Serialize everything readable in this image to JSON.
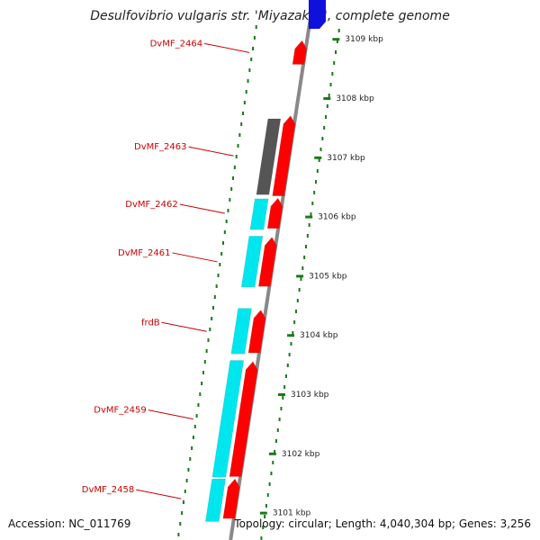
{
  "title": "Desulfovibrio vulgaris str. 'Miyazaki F', complete genome",
  "footer": {
    "accession": "Accession: NC_011769",
    "topology": "Topology: circular; Length: 4,040,304 bp; Genes: 3,256"
  },
  "colors": {
    "forward_gene": "#ff0000",
    "reverse_gene": "#00e6ee",
    "other_feature": "#555555",
    "top_feature": "#1010dd",
    "label": "#cc0000",
    "backbone": "#888888",
    "tick": "#1a7a1a"
  },
  "scale": {
    "unit": "kbp",
    "ticks": [
      {
        "kbp": 3109,
        "label": "3109 kbp"
      },
      {
        "kbp": 3108,
        "label": "3108 kbp"
      },
      {
        "kbp": 3107,
        "label": "3107 kbp"
      },
      {
        "kbp": 3106,
        "label": "3106 kbp"
      },
      {
        "kbp": 3105,
        "label": "3105 kbp"
      },
      {
        "kbp": 3104,
        "label": "3104 kbp"
      },
      {
        "kbp": 3103,
        "label": "3103 kbp"
      },
      {
        "kbp": 3102,
        "label": "3102 kbp"
      },
      {
        "kbp": 3101,
        "label": "3101 kbp"
      }
    ]
  },
  "genes": [
    {
      "label": "DvMF_2464",
      "strand": "forward",
      "start_kbp": 3108.57,
      "end_kbp": 3108.97
    },
    {
      "label": "DvMF_2463",
      "strand": "forward",
      "start_kbp": 3106.35,
      "end_kbp": 3107.7
    },
    {
      "label": "",
      "strand": "other",
      "start_kbp": 3106.37,
      "end_kbp": 3107.65
    },
    {
      "label": "DvMF_2462",
      "strand": "forward",
      "start_kbp": 3105.8,
      "end_kbp": 3106.31
    },
    {
      "label": "",
      "strand": "reverse",
      "start_kbp": 3105.78,
      "end_kbp": 3106.3
    },
    {
      "label": "DvMF_2461",
      "strand": "forward",
      "start_kbp": 3104.82,
      "end_kbp": 3105.65
    },
    {
      "label": "",
      "strand": "reverse",
      "start_kbp": 3104.81,
      "end_kbp": 3105.67
    },
    {
      "label": "frdB",
      "strand": "forward",
      "start_kbp": 3103.7,
      "end_kbp": 3104.42
    },
    {
      "label": "",
      "strand": "reverse",
      "start_kbp": 3103.68,
      "end_kbp": 3104.45
    },
    {
      "label": "DvMF_2459",
      "strand": "forward",
      "start_kbp": 3101.61,
      "end_kbp": 3103.55
    },
    {
      "label": "",
      "strand": "reverse",
      "start_kbp": 3101.6,
      "end_kbp": 3103.57
    },
    {
      "label": "DvMF_2458",
      "strand": "forward",
      "start_kbp": 3100.9,
      "end_kbp": 3101.57
    },
    {
      "label": "",
      "strand": "reverse",
      "start_kbp": 3100.85,
      "end_kbp": 3101.57
    }
  ]
}
